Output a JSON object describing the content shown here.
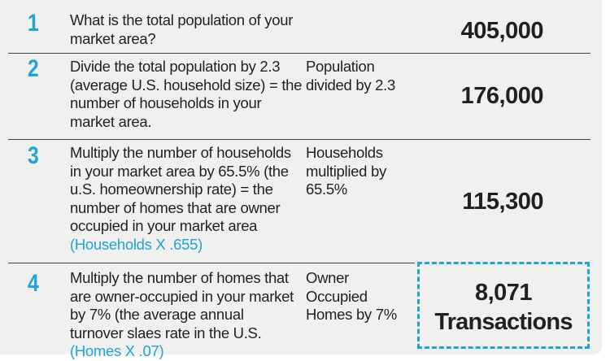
{
  "steps": [
    {
      "number": "1",
      "description": "What is the total population of your market area?",
      "calculation": "",
      "value": "405,000"
    },
    {
      "number": "2",
      "description": "Divide the total population by 2.3 (average U.S. household size) = the number of households in your market area.",
      "calculation": "Population divided by 2.3",
      "value": "176,000"
    },
    {
      "number": "3",
      "description": "Multiply the number of households in your market area by 65.5% (the u.S. homeownership rate) = the number of homes that are owner occupied in your market area",
      "formula": "(Households X .655)",
      "calculation": "Households multiplied by 65.5%",
      "value": "115,300"
    },
    {
      "number": "4",
      "description": "Multiply the number of homes that are owner-occupied in your market by 7% (the average annual turnover slaes rate in the U.S.",
      "formula": "(Homes X .07)",
      "calculation": "Owner Occupied Homes by 7%",
      "value": "8,071",
      "unit": "Transactions"
    }
  ],
  "colors": {
    "accent": "#1fa3d8",
    "text": "#231f20",
    "background": "#f0f0ef",
    "divider": "#444444"
  }
}
